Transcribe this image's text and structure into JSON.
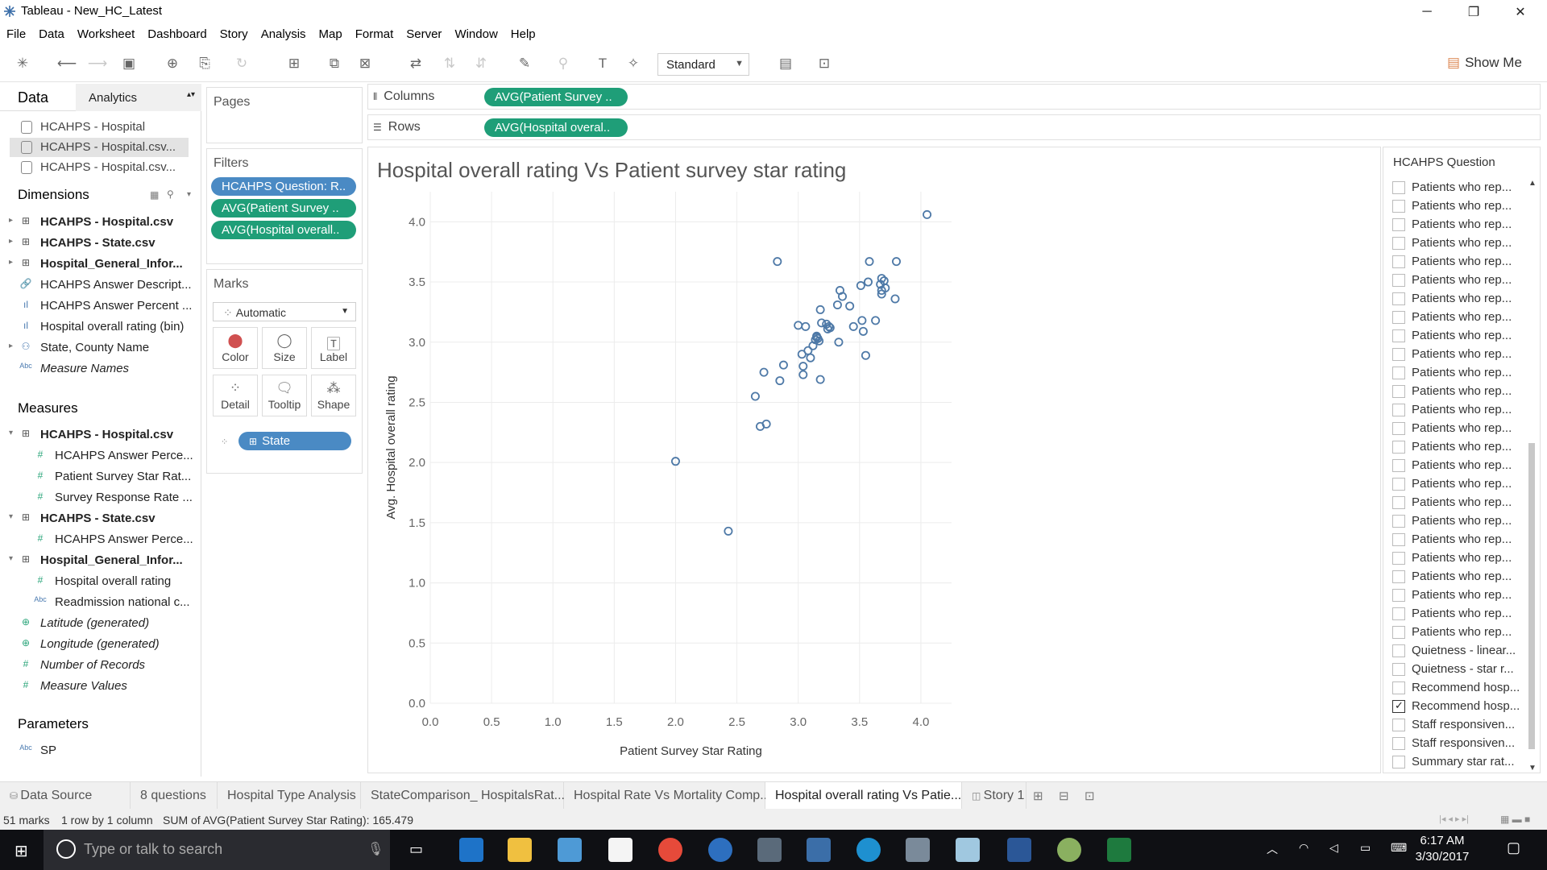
{
  "window": {
    "title": "Tableau - New_HC_Latest",
    "minimize": "─",
    "restore": "❐",
    "close": "✕"
  },
  "menu": [
    "File",
    "Data",
    "Worksheet",
    "Dashboard",
    "Story",
    "Analysis",
    "Map",
    "Format",
    "Server",
    "Window",
    "Help"
  ],
  "toolbar": {
    "fit_mode": "Standard",
    "show_me": "Show Me"
  },
  "data_pane": {
    "tab_data": "Data",
    "tab_analytics": "Analytics",
    "datasources": [
      "HCAHPS - Hospital",
      "HCAHPS - Hospital.csv...",
      "HCAHPS - Hospital.csv..."
    ],
    "dimensions_header": "Dimensions",
    "dimensions": [
      {
        "label": "HCAHPS - Hospital.csv",
        "icon": "⊞",
        "bold": true,
        "caret": "▸"
      },
      {
        "label": "HCAHPS - State.csv",
        "icon": "⊞",
        "bold": true,
        "caret": "▸"
      },
      {
        "label": "Hospital_General_Infor...",
        "icon": "⊞",
        "bold": true,
        "caret": "▸"
      },
      {
        "label": "HCAHPS Answer Descript...",
        "icon": "🔗",
        "bold": false,
        "caret": ""
      },
      {
        "label": "HCAHPS Answer Percent ...",
        "icon": "ıl",
        "bold": false,
        "caret": ""
      },
      {
        "label": "Hospital overall rating (bin)",
        "icon": "ıl",
        "bold": false,
        "caret": ""
      },
      {
        "label": "State, County Name",
        "icon": "⚇",
        "bold": false,
        "caret": "▸"
      },
      {
        "label": "Measure Names",
        "icon": "Abc",
        "bold": false,
        "italic": true,
        "caret": ""
      }
    ],
    "measures_header": "Measures",
    "measures": [
      {
        "label": "HCAHPS - Hospital.csv",
        "icon": "⊞",
        "bold": true,
        "caret": "▾",
        "indent": 0
      },
      {
        "label": "HCAHPS Answer Perce...",
        "icon": "#",
        "bold": false,
        "caret": "",
        "indent": 1
      },
      {
        "label": "Patient Survey Star Rat...",
        "icon": "#",
        "bold": false,
        "caret": "",
        "indent": 1
      },
      {
        "label": "Survey Response Rate ...",
        "icon": "#",
        "bold": false,
        "caret": "",
        "indent": 1
      },
      {
        "label": "HCAHPS - State.csv",
        "icon": "⊞",
        "bold": true,
        "caret": "▾",
        "indent": 0
      },
      {
        "label": "HCAHPS Answer Perce...",
        "icon": "#",
        "bold": false,
        "caret": "",
        "indent": 1
      },
      {
        "label": "Hospital_General_Infor...",
        "icon": "⊞",
        "bold": true,
        "caret": "▾",
        "indent": 0
      },
      {
        "label": "Hospital overall rating",
        "icon": "#",
        "bold": false,
        "caret": "",
        "indent": 1
      },
      {
        "label": "Readmission national c...",
        "icon": "Abc",
        "bold": false,
        "caret": "",
        "indent": 1
      },
      {
        "label": "Latitude (generated)",
        "icon": "⊕",
        "bold": false,
        "italic": true,
        "caret": "",
        "indent": 0
      },
      {
        "label": "Longitude (generated)",
        "icon": "⊕",
        "bold": false,
        "italic": true,
        "caret": "",
        "indent": 0
      },
      {
        "label": "Number of Records",
        "icon": "#",
        "bold": false,
        "italic": true,
        "caret": "",
        "indent": 0
      },
      {
        "label": "Measure Values",
        "icon": "#",
        "bold": false,
        "italic": true,
        "caret": "",
        "indent": 0
      }
    ],
    "parameters_header": "Parameters",
    "parameters": [
      {
        "label": "SP",
        "icon": "Abc"
      }
    ]
  },
  "pages": {
    "header": "Pages"
  },
  "filters": {
    "header": "Filters",
    "pills": [
      {
        "label": "HCAHPS Question: R..",
        "color": "blue"
      },
      {
        "label": "AVG(Patient Survey ..",
        "color": "teal"
      },
      {
        "label": "AVG(Hospital overall..",
        "color": "teal"
      }
    ]
  },
  "marks": {
    "header": "Marks",
    "type": "Automatic",
    "buttons": [
      "Color",
      "Size",
      "Label",
      "Detail",
      "Tooltip",
      "Shape"
    ],
    "detail_pill": "State"
  },
  "shelves": {
    "columns_label": "Columns",
    "columns_pill": "AVG(Patient Survey ..",
    "rows_label": "Rows",
    "rows_pill": "AVG(Hospital overal.."
  },
  "chart_data": {
    "type": "scatter",
    "title": "Hospital overall rating Vs Patient survey star rating",
    "xlabel": "Patient Survey Star Rating",
    "ylabel": "Avg. Hospital overall rating",
    "xlim": [
      0.0,
      4.25
    ],
    "ylim": [
      0.0,
      4.25
    ],
    "x_ticks": [
      "0.0",
      "0.5",
      "1.0",
      "1.5",
      "2.0",
      "2.5",
      "3.0",
      "3.5",
      "4.0"
    ],
    "y_ticks": [
      "0.0",
      "0.5",
      "1.0",
      "1.5",
      "2.0",
      "2.5",
      "3.0",
      "3.5",
      "4.0"
    ],
    "grid": true,
    "mark_color": "#4e79a7",
    "points": [
      [
        4.05,
        4.06
      ],
      [
        2.83,
        3.67
      ],
      [
        3.58,
        3.67
      ],
      [
        3.8,
        3.67
      ],
      [
        3.68,
        3.53
      ],
      [
        3.7,
        3.51
      ],
      [
        3.57,
        3.5
      ],
      [
        3.67,
        3.48
      ],
      [
        3.51,
        3.47
      ],
      [
        3.71,
        3.45
      ],
      [
        3.68,
        3.43
      ],
      [
        3.34,
        3.43
      ],
      [
        3.36,
        3.38
      ],
      [
        3.68,
        3.4
      ],
      [
        3.79,
        3.36
      ],
      [
        3.32,
        3.31
      ],
      [
        3.42,
        3.3
      ],
      [
        3.18,
        3.27
      ],
      [
        3.63,
        3.18
      ],
      [
        3.52,
        3.18
      ],
      [
        3.19,
        3.16
      ],
      [
        3.23,
        3.15
      ],
      [
        3.0,
        3.14
      ],
      [
        3.06,
        3.13
      ],
      [
        3.25,
        3.13
      ],
      [
        3.24,
        3.11
      ],
      [
        3.45,
        3.13
      ],
      [
        3.53,
        3.09
      ],
      [
        3.15,
        3.04
      ],
      [
        3.16,
        3.03
      ],
      [
        3.14,
        3.02
      ],
      [
        3.17,
        3.01
      ],
      [
        3.33,
        3.0
      ],
      [
        3.12,
        2.97
      ],
      [
        3.08,
        2.93
      ],
      [
        3.03,
        2.9
      ],
      [
        3.1,
        2.87
      ],
      [
        3.55,
        2.89
      ],
      [
        2.88,
        2.81
      ],
      [
        3.04,
        2.8
      ],
      [
        2.72,
        2.75
      ],
      [
        3.04,
        2.73
      ],
      [
        2.85,
        2.68
      ],
      [
        3.18,
        2.69
      ],
      [
        2.65,
        2.55
      ],
      [
        2.74,
        2.32
      ],
      [
        2.69,
        2.3
      ],
      [
        2.0,
        2.01
      ],
      [
        2.43,
        1.43
      ],
      [
        3.15,
        3.05
      ],
      [
        3.26,
        3.12
      ]
    ]
  },
  "quick_filter": {
    "header": "HCAHPS Question",
    "items": [
      {
        "label": "Patients who rep...",
        "checked": false
      },
      {
        "label": "Patients who rep...",
        "checked": false
      },
      {
        "label": "Patients who rep...",
        "checked": false
      },
      {
        "label": "Patients who rep...",
        "checked": false
      },
      {
        "label": "Patients who rep...",
        "checked": false
      },
      {
        "label": "Patients who rep...",
        "checked": false
      },
      {
        "label": "Patients who rep...",
        "checked": false
      },
      {
        "label": "Patients who rep...",
        "checked": false
      },
      {
        "label": "Patients who rep...",
        "checked": false
      },
      {
        "label": "Patients who rep...",
        "checked": false
      },
      {
        "label": "Patients who rep...",
        "checked": false
      },
      {
        "label": "Patients who rep...",
        "checked": false
      },
      {
        "label": "Patients who rep...",
        "checked": false
      },
      {
        "label": "Patients who rep...",
        "checked": false
      },
      {
        "label": "Patients who rep...",
        "checked": false
      },
      {
        "label": "Patients who rep...",
        "checked": false
      },
      {
        "label": "Patients who rep...",
        "checked": false
      },
      {
        "label": "Patients who rep...",
        "checked": false
      },
      {
        "label": "Patients who rep...",
        "checked": false
      },
      {
        "label": "Patients who rep...",
        "checked": false
      },
      {
        "label": "Patients who rep...",
        "checked": false
      },
      {
        "label": "Patients who rep...",
        "checked": false
      },
      {
        "label": "Patients who rep...",
        "checked": false
      },
      {
        "label": "Patients who rep...",
        "checked": false
      },
      {
        "label": "Patients who rep...",
        "checked": false
      },
      {
        "label": "Quietness - linear...",
        "checked": false
      },
      {
        "label": "Quietness - star r...",
        "checked": false
      },
      {
        "label": "Recommend hosp...",
        "checked": false
      },
      {
        "label": "Recommend hosp...",
        "checked": true
      },
      {
        "label": "Staff responsiven...",
        "checked": false
      },
      {
        "label": "Staff responsiven...",
        "checked": false
      },
      {
        "label": "Summary star rat...",
        "checked": false
      }
    ]
  },
  "sheet_tabs": [
    "Data Source",
    "8 questions",
    "Hospital Type Analysis",
    "StateComparison_ HospitalsRat...",
    "Hospital Rate Vs Mortality Comp...",
    "Hospital overall rating Vs Patie...",
    "Story 1"
  ],
  "active_sheet": 5,
  "status": {
    "marks": "51 marks",
    "layout": "1 row by 1 column",
    "sum": "SUM of AVG(Patient Survey Star Rating): 165.479"
  },
  "taskbar": {
    "search_placeholder": "Type or talk to search",
    "time": "6:17 AM",
    "date": "3/30/2017"
  }
}
